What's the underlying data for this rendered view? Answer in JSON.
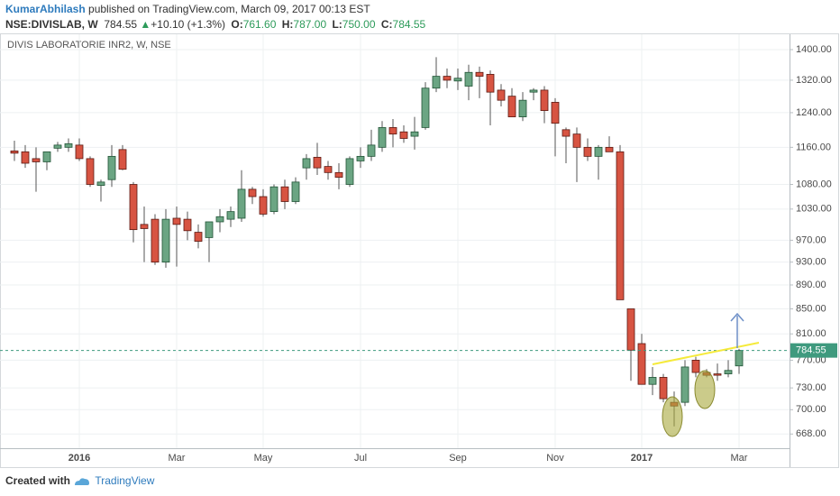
{
  "header": {
    "author": "KumarAbhilash",
    "published": "published on TradingView.com, March 09, 2017 00:13 EST",
    "symbol": "NSE:DIVISLAB, W",
    "last": "784.55",
    "arrow": "▲",
    "change": "+10.10 (+1.3%)",
    "ohlc": [
      {
        "label": "O:",
        "value": "761.60"
      },
      {
        "label": "H:",
        "value": "787.00"
      },
      {
        "label": "L:",
        "value": "750.00"
      },
      {
        "label": "C:",
        "value": "784.55"
      }
    ]
  },
  "chart_data": {
    "type": "candlestick",
    "title": "DIVIS LABORATORIE INR2, W, NSE",
    "categories": [
      null,
      null,
      null,
      null,
      null,
      null,
      "2016",
      null,
      null,
      null,
      null,
      null,
      null,
      null,
      null,
      "Mar",
      null,
      null,
      null,
      null,
      null,
      null,
      null,
      "May",
      null,
      null,
      null,
      null,
      null,
      null,
      null,
      null,
      "Jul",
      null,
      null,
      null,
      null,
      null,
      null,
      null,
      null,
      "Sep",
      null,
      null,
      null,
      null,
      null,
      null,
      null,
      null,
      "Nov",
      null,
      null,
      null,
      null,
      null,
      null,
      null,
      "2017",
      null,
      null,
      null,
      null,
      null,
      null,
      null,
      null,
      "Mar"
    ],
    "open": [
      1152,
      1150,
      1135,
      1128,
      1158,
      1160,
      1165,
      1135,
      1078,
      1090,
      1155,
      1080,
      1000,
      1010,
      930,
      1012,
      1010,
      985,
      975,
      1005,
      1010,
      1012,
      1070,
      1055,
      1025,
      1075,
      1045,
      1115,
      1138,
      1118,
      1105,
      1080,
      1130,
      1140,
      1160,
      1205,
      1195,
      1185,
      1205,
      1300,
      1330,
      1318,
      1305,
      1340,
      1335,
      1295,
      1280,
      1230,
      1290,
      1295,
      1265,
      1200,
      1190,
      1160,
      1140,
      1160,
      1150,
      850,
      795,
      735,
      745,
      710,
      710,
      770,
      752,
      750,
      750,
      761.6
    ],
    "high": [
      1175,
      1165,
      1160,
      1150,
      1172,
      1180,
      1180,
      1140,
      1090,
      1165,
      1165,
      1085,
      1035,
      1020,
      1030,
      1035,
      1025,
      1000,
      1005,
      1030,
      1035,
      1110,
      1075,
      1070,
      1080,
      1090,
      1095,
      1145,
      1170,
      1130,
      1125,
      1140,
      1160,
      1200,
      1220,
      1225,
      1210,
      1230,
      1315,
      1380,
      1350,
      1350,
      1360,
      1355,
      1345,
      1310,
      1300,
      1290,
      1300,
      1305,
      1275,
      1205,
      1205,
      1180,
      1165,
      1185,
      1165,
      850,
      810,
      760,
      750,
      725,
      770,
      775,
      757,
      765,
      770,
      787
    ],
    "low": [
      1130,
      1115,
      1065,
      1110,
      1150,
      1150,
      1130,
      1075,
      1045,
      1075,
      1110,
      966,
      930,
      925,
      920,
      922,
      970,
      955,
      930,
      985,
      995,
      1005,
      1040,
      1015,
      1020,
      1030,
      1040,
      1090,
      1100,
      1090,
      1070,
      1075,
      1115,
      1130,
      1150,
      1160,
      1170,
      1155,
      1200,
      1290,
      1300,
      1295,
      1270,
      1275,
      1210,
      1255,
      1230,
      1220,
      1270,
      1215,
      1140,
      1125,
      1085,
      1130,
      1090,
      1150,
      865,
      740,
      735,
      720,
      710,
      678,
      705,
      745,
      745,
      740,
      745,
      750
    ],
    "close": [
      1147,
      1125,
      1128,
      1150,
      1165,
      1168,
      1135,
      1080,
      1085,
      1140,
      1112,
      990,
      992,
      930,
      1010,
      1000,
      988,
      968,
      1005,
      1015,
      1025,
      1070,
      1055,
      1020,
      1075,
      1045,
      1085,
      1135,
      1115,
      1105,
      1095,
      1135,
      1140,
      1165,
      1205,
      1190,
      1180,
      1195,
      1300,
      1330,
      1320,
      1325,
      1340,
      1330,
      1290,
      1270,
      1230,
      1270,
      1295,
      1245,
      1215,
      1185,
      1160,
      1140,
      1160,
      1150,
      865,
      785,
      735,
      745,
      715,
      705,
      760,
      752,
      748,
      748,
      755,
      784.55
    ],
    "up_color": "#6ba583",
    "down_color": "#d75442",
    "ylim": [
      650,
      1442
    ],
    "log_scale": true,
    "grid": true,
    "yticks": [
      {
        "value": 1400,
        "label": "1400.00"
      },
      {
        "value": 1320,
        "label": "1320.00"
      },
      {
        "value": 1240,
        "label": "1240.00"
      },
      {
        "value": 1160,
        "label": "1160.00"
      },
      {
        "value": 1080,
        "label": "1080.00"
      },
      {
        "value": 1030,
        "label": "1030.00"
      },
      {
        "value": 970,
        "label": "970.00"
      },
      {
        "value": 930,
        "label": "930.00"
      },
      {
        "value": 890,
        "label": "890.00"
      },
      {
        "value": 850,
        "label": "850.00"
      },
      {
        "value": 810,
        "label": "810.00"
      },
      {
        "value": 770,
        "label": "770.00"
      },
      {
        "value": 730,
        "label": "730.00"
      },
      {
        "value": 700,
        "label": "700.00"
      },
      {
        "value": 668,
        "label": "668.00"
      }
    ]
  },
  "footer": {
    "created_with": "Created with",
    "brand": "TradingView"
  }
}
